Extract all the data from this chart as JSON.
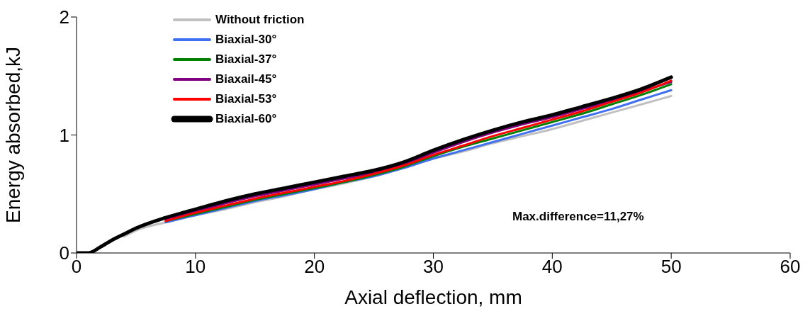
{
  "chart_data": {
    "type": "line",
    "xlabel": "Axial deflection, mm",
    "ylabel": "Energy absorbed,kJ",
    "x": [
      0,
      1,
      2,
      3,
      4,
      5,
      7.5,
      10,
      12.5,
      15,
      17.5,
      20,
      22.5,
      25,
      27.5,
      30,
      32.5,
      35,
      37.5,
      40,
      42.5,
      45,
      47.5,
      50
    ],
    "series": [
      {
        "name": "Without friction",
        "color": "#c0c0c0",
        "values": [
          null,
          null,
          null,
          null,
          0.14,
          0.19,
          0.26,
          0.32,
          0.37,
          0.43,
          0.48,
          0.54,
          0.59,
          0.65,
          0.72,
          0.8,
          0.86,
          0.93,
          0.99,
          1.05,
          1.12,
          1.19,
          1.26,
          1.33
        ]
      },
      {
        "name": "Biaxial-30°",
        "color": "#4070f0",
        "values": [
          null,
          null,
          null,
          null,
          null,
          null,
          0.26,
          0.32,
          0.38,
          0.44,
          0.49,
          0.54,
          0.6,
          0.65,
          0.72,
          0.8,
          0.87,
          0.94,
          1.01,
          1.08,
          1.15,
          1.22,
          1.3,
          1.38
        ]
      },
      {
        "name": "Biaxial-37°",
        "color": "#008000",
        "values": [
          null,
          null,
          null,
          null,
          null,
          null,
          0.27,
          0.33,
          0.39,
          0.45,
          0.5,
          0.55,
          0.6,
          0.66,
          0.73,
          0.82,
          0.9,
          0.97,
          1.04,
          1.11,
          1.18,
          1.26,
          1.34,
          1.43
        ]
      },
      {
        "name": "Biaxail-45°",
        "color": "#800080",
        "values": [
          null,
          null,
          null,
          null,
          null,
          null,
          0.28,
          0.35,
          0.42,
          0.48,
          0.53,
          0.58,
          0.63,
          0.68,
          0.75,
          0.85,
          0.94,
          1.02,
          1.09,
          1.15,
          1.22,
          1.29,
          1.37,
          1.45
        ]
      },
      {
        "name": "Biaxial-53°",
        "color": "#ff0000",
        "values": [
          null,
          null,
          null,
          null,
          null,
          null,
          0.27,
          0.34,
          0.4,
          0.46,
          0.51,
          0.56,
          0.61,
          0.67,
          0.74,
          0.83,
          0.91,
          0.99,
          1.06,
          1.13,
          1.2,
          1.28,
          1.36,
          1.46
        ]
      },
      {
        "name": "Biaxial-60°",
        "color": "#000000",
        "values": [
          0,
          0,
          0.05,
          0.11,
          0.16,
          0.21,
          0.3,
          0.37,
          0.44,
          0.5,
          0.55,
          0.6,
          0.65,
          0.7,
          0.77,
          0.87,
          0.96,
          1.04,
          1.11,
          1.17,
          1.24,
          1.31,
          1.39,
          1.49
        ]
      }
    ],
    "xlim": [
      0,
      60
    ],
    "xticks": [
      0,
      10,
      20,
      30,
      40,
      50,
      60
    ],
    "ylim": [
      0,
      2
    ],
    "yticks": [
      0,
      1,
      2
    ],
    "grid": false,
    "legend": "top left",
    "marker": "none",
    "line_style": "solid",
    "annotations": [
      "Max.difference=11,27%"
    ]
  }
}
